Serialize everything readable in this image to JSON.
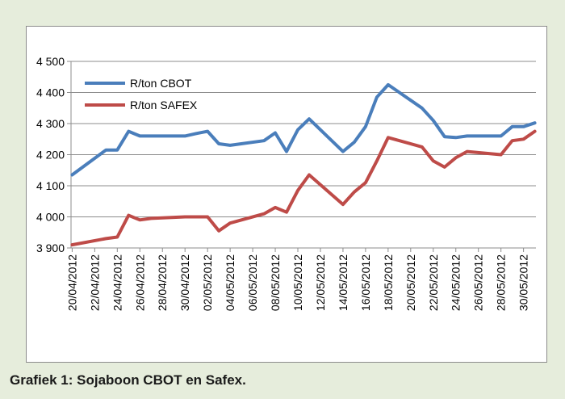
{
  "caption": "Grafiek 1: Sojaboon CBOT en Safex.",
  "chart_data": {
    "type": "line",
    "ylim": [
      3900,
      4500
    ],
    "yticks": [
      3900,
      4000,
      4100,
      4200,
      4300,
      4400,
      4500
    ],
    "ytick_labels": [
      "3 900",
      "4 000",
      "4 100",
      "4 200",
      "4 300",
      "4 400",
      "4 500"
    ],
    "xlim": [
      "20/04/2012",
      "31/05/2012"
    ],
    "xtick_labels": [
      "20/04/2012",
      "22/04/2012",
      "24/04/2012",
      "26/04/2012",
      "28/04/2012",
      "30/04/2012",
      "02/05/2012",
      "04/05/2012",
      "06/05/2012",
      "08/05/2012",
      "10/05/2012",
      "12/05/2012",
      "14/05/2012",
      "16/05/2012",
      "18/05/2012",
      "20/05/2012",
      "22/05/2012",
      "24/05/2012",
      "26/05/2012",
      "28/05/2012",
      "30/05/2012"
    ],
    "grid": true,
    "legend_position": "top-left",
    "series": [
      {
        "name": "R/ton CBOT",
        "color": "#4a7ebb",
        "x": [
          "20/04/2012",
          "23/04/2012",
          "24/04/2012",
          "25/04/2012",
          "26/04/2012",
          "27/04/2012",
          "30/04/2012",
          "01/05/2012",
          "02/05/2012",
          "03/05/2012",
          "04/05/2012",
          "07/05/2012",
          "08/05/2012",
          "09/05/2012",
          "10/05/2012",
          "11/05/2012",
          "14/05/2012",
          "15/05/2012",
          "16/05/2012",
          "17/05/2012",
          "18/05/2012",
          "21/05/2012",
          "22/05/2012",
          "23/05/2012",
          "24/05/2012",
          "25/05/2012",
          "28/05/2012",
          "29/05/2012",
          "30/05/2012",
          "31/05/2012"
        ],
        "y": [
          4135,
          4215,
          4215,
          4275,
          4260,
          4260,
          4260,
          4268,
          4275,
          4235,
          4230,
          4245,
          4270,
          4210,
          4280,
          4315,
          4210,
          4240,
          4290,
          4385,
          4425,
          4350,
          4310,
          4258,
          4255,
          4260,
          4260,
          4290,
          4290,
          4302
        ]
      },
      {
        "name": "R/ton SAFEX",
        "color": "#be4b48",
        "x": [
          "20/04/2012",
          "23/04/2012",
          "24/04/2012",
          "25/04/2012",
          "26/04/2012",
          "27/04/2012",
          "30/04/2012",
          "01/05/2012",
          "02/05/2012",
          "03/05/2012",
          "04/05/2012",
          "07/05/2012",
          "08/05/2012",
          "09/05/2012",
          "10/05/2012",
          "11/05/2012",
          "14/05/2012",
          "15/05/2012",
          "16/05/2012",
          "17/05/2012",
          "18/05/2012",
          "21/05/2012",
          "22/05/2012",
          "23/05/2012",
          "24/05/2012",
          "25/05/2012",
          "28/05/2012",
          "29/05/2012",
          "30/05/2012",
          "31/05/2012"
        ],
        "y": [
          3910,
          3930,
          3935,
          4005,
          3990,
          3995,
          4000,
          4000,
          4000,
          3955,
          3980,
          4010,
          4030,
          4015,
          4085,
          4135,
          4040,
          4080,
          4110,
          4180,
          4255,
          4225,
          4180,
          4160,
          4190,
          4210,
          4200,
          4245,
          4250,
          4275
        ]
      }
    ]
  }
}
